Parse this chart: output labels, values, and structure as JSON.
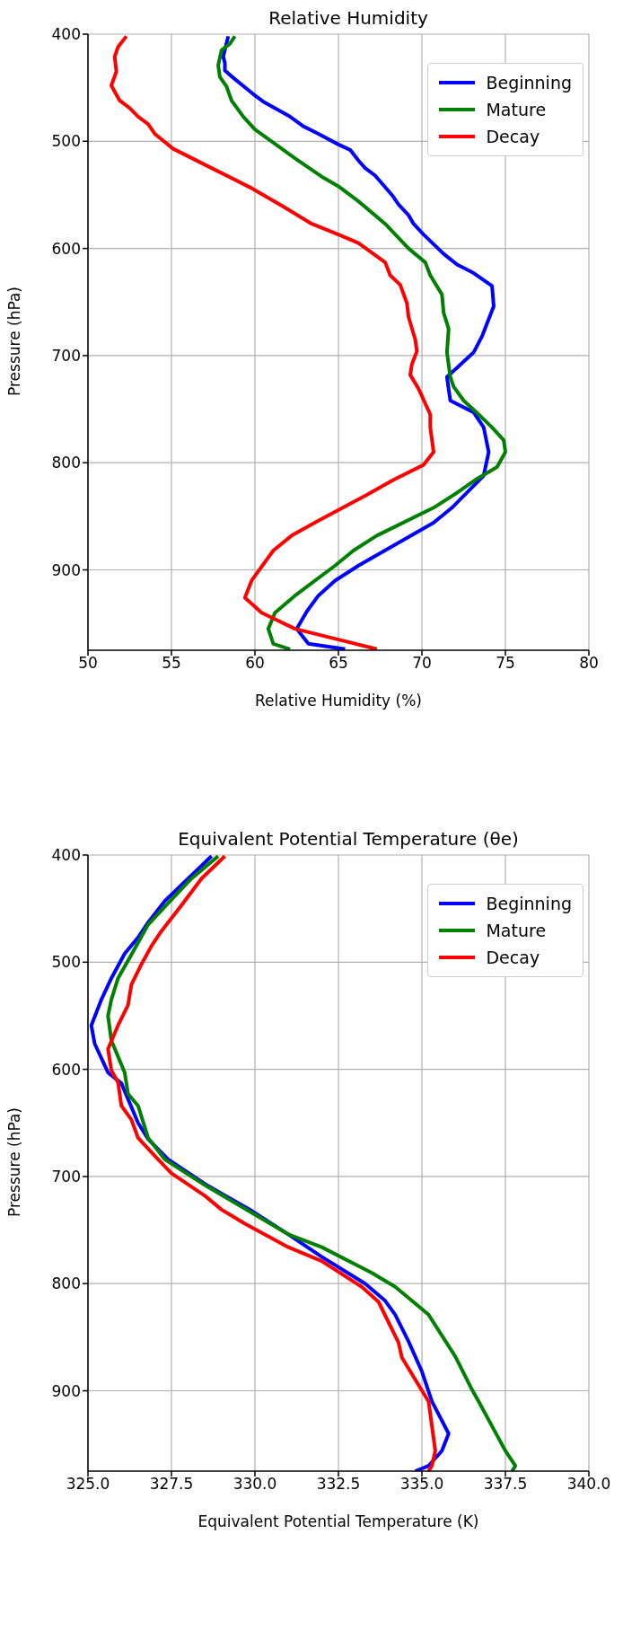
{
  "chart_data": [
    {
      "type": "line",
      "title": "Relative Humidity",
      "xlabel": "Relative Humidity (%)",
      "ylabel": "Pressure (hPa)",
      "xlim": [
        50,
        80
      ],
      "xticks": [
        50,
        55,
        60,
        65,
        70,
        75,
        80
      ],
      "ylim": [
        975,
        400
      ],
      "yticks": [
        400,
        500,
        600,
        700,
        800,
        900
      ],
      "grid": true,
      "legend": "top right",
      "marker": "none",
      "line_style": "solid",
      "series": [
        {
          "name": "Beginning",
          "color": "#0000ff",
          "x": [
            58.4,
            58.1,
            58.2,
            58.2,
            58.8,
            59.9,
            60.5,
            62.1,
            62.9,
            63.8,
            65.0,
            65.7,
            66.2,
            66.6,
            67.2,
            68.2,
            68.6,
            69.2,
            69.5,
            70.1,
            71.3,
            72.1,
            73.1,
            74.2,
            74.3,
            73.6,
            73.1,
            71.5,
            71.7,
            73.1,
            73.7,
            74.0,
            73.7,
            71.8,
            70.7,
            66.2,
            64.8,
            63.8,
            63.1,
            62.5,
            63.2,
            65.4
          ],
          "values": [
            402,
            421,
            427,
            434,
            442,
            456,
            463,
            477,
            486,
            493,
            503,
            508,
            518,
            525,
            532,
            550,
            559,
            569,
            577,
            587,
            605,
            615,
            623,
            635,
            654,
            682,
            697,
            720,
            742,
            753,
            767,
            790,
            812,
            842,
            856,
            896,
            910,
            924,
            939,
            955,
            969,
            974
          ]
        },
        {
          "name": "Mature",
          "color": "#008000",
          "x": [
            58.8,
            58.5,
            58.0,
            57.8,
            57.9,
            58.3,
            58.6,
            59.3,
            60.0,
            61.7,
            62.5,
            64.0,
            65.0,
            66.2,
            67.8,
            69.2,
            70.2,
            70.5,
            71.2,
            71.3,
            71.6,
            71.5,
            71.7,
            71.9,
            72.5,
            73.4,
            74.2,
            74.9,
            75.0,
            74.5,
            73.2,
            72.1,
            70.7,
            67.3,
            65.9,
            64.8,
            62.4,
            61.2,
            60.8,
            61.1,
            62.1
          ],
          "values": [
            402,
            409,
            415,
            429,
            440,
            449,
            462,
            477,
            489,
            508,
            517,
            533,
            542,
            556,
            577,
            600,
            613,
            625,
            643,
            660,
            675,
            697,
            720,
            729,
            742,
            755,
            767,
            779,
            790,
            804,
            816,
            828,
            842,
            868,
            882,
            896,
            924,
            940,
            955,
            969,
            974
          ]
        },
        {
          "name": "Decay",
          "color": "#ff0000",
          "x": [
            52.3,
            51.8,
            51.6,
            51.7,
            51.4,
            51.9,
            52.5,
            53.0,
            53.6,
            54.0,
            55.1,
            57.4,
            59.7,
            61.7,
            63.4,
            65.0,
            66.2,
            67.8,
            68.1,
            68.7,
            69.1,
            69.2,
            69.6,
            69.7,
            69.4,
            69.3,
            69.8,
            70.5,
            70.5,
            70.7,
            70.1,
            68.3,
            66.7,
            63.8,
            62.2,
            61.1,
            59.8,
            59.4,
            60.4,
            62.4,
            65.0,
            67.3
          ],
          "values": [
            402,
            412,
            421,
            435,
            448,
            462,
            469,
            477,
            484,
            493,
            507,
            525,
            543,
            561,
            577,
            587,
            595,
            613,
            625,
            634,
            651,
            664,
            685,
            696,
            708,
            718,
            731,
            755,
            767,
            790,
            802,
            816,
            830,
            854,
            868,
            882,
            910,
            926,
            940,
            955,
            965,
            974
          ]
        }
      ]
    },
    {
      "type": "line",
      "title": "Equivalent Potential Temperature (θe)",
      "xlabel": "Equivalent Potential Temperature (K)",
      "ylabel": "Pressure (hPa)",
      "xlim": [
        325,
        340
      ],
      "xticks": [
        {
          "value": 325,
          "label": "325.0"
        },
        {
          "value": 327.5,
          "label": "327.5"
        },
        {
          "value": 330,
          "label": "330.0"
        },
        {
          "value": 332.5,
          "label": "332.5"
        },
        {
          "value": 335,
          "label": "335.0"
        },
        {
          "value": 337.5,
          "label": "337.5"
        },
        {
          "value": 340,
          "label": "340.0"
        }
      ],
      "ylim": [
        975,
        400
      ],
      "yticks": [
        400,
        500,
        600,
        700,
        800,
        900
      ],
      "grid": true,
      "legend": "top right",
      "marker": "none",
      "line_style": "solid",
      "series": [
        {
          "name": "Beginning",
          "color": "#0000ff",
          "x": [
            328.7,
            328.0,
            327.3,
            326.8,
            326.5,
            326.1,
            325.7,
            325.4,
            325.2,
            325.1,
            325.2,
            325.6,
            326.0,
            326.5,
            326.8,
            327.4,
            328.5,
            329.9,
            331.0,
            332.0,
            333.3,
            333.9,
            334.2,
            334.6,
            335.0,
            335.3,
            335.8,
            335.6,
            335.2,
            334.8
          ],
          "values": [
            401,
            422,
            443,
            463,
            477,
            492,
            515,
            535,
            551,
            559,
            576,
            603,
            613,
            650,
            665,
            684,
            707,
            732,
            754,
            775,
            800,
            816,
            829,
            854,
            882,
            910,
            940,
            956,
            970,
            975
          ]
        },
        {
          "name": "Mature",
          "color": "#008000",
          "x": [
            328.9,
            328.1,
            327.4,
            326.8,
            326.3,
            325.9,
            325.7,
            325.6,
            325.7,
            326.1,
            326.2,
            326.5,
            326.8,
            327.3,
            328.5,
            329.8,
            331.0,
            332.0,
            333.5,
            334.2,
            334.7,
            335.2,
            336.0,
            336.5,
            336.7,
            337.5,
            337.8,
            337.7
          ],
          "values": [
            401,
            422,
            445,
            465,
            493,
            515,
            535,
            550,
            573,
            603,
            623,
            634,
            664,
            684,
            708,
            732,
            754,
            766,
            790,
            803,
            816,
            829,
            868,
            899,
            910,
            956,
            970,
            975
          ]
        },
        {
          "name": "Decay",
          "color": "#ff0000",
          "x": [
            329.1,
            328.4,
            327.8,
            327.2,
            326.9,
            326.6,
            326.3,
            326.2,
            325.9,
            325.6,
            325.7,
            325.9,
            326.0,
            326.3,
            326.5,
            327.1,
            327.5,
            328.5,
            329.0,
            329.7,
            331.0,
            332.0,
            333.2,
            333.7,
            334.3,
            334.4,
            335.2,
            335.4,
            335.3,
            335.2
          ],
          "values": [
            401,
            422,
            447,
            471,
            485,
            502,
            521,
            540,
            559,
            581,
            601,
            612,
            634,
            647,
            664,
            684,
            697,
            718,
            731,
            744,
            766,
            779,
            803,
            817,
            855,
            869,
            910,
            956,
            970,
            975
          ]
        }
      ]
    }
  ]
}
